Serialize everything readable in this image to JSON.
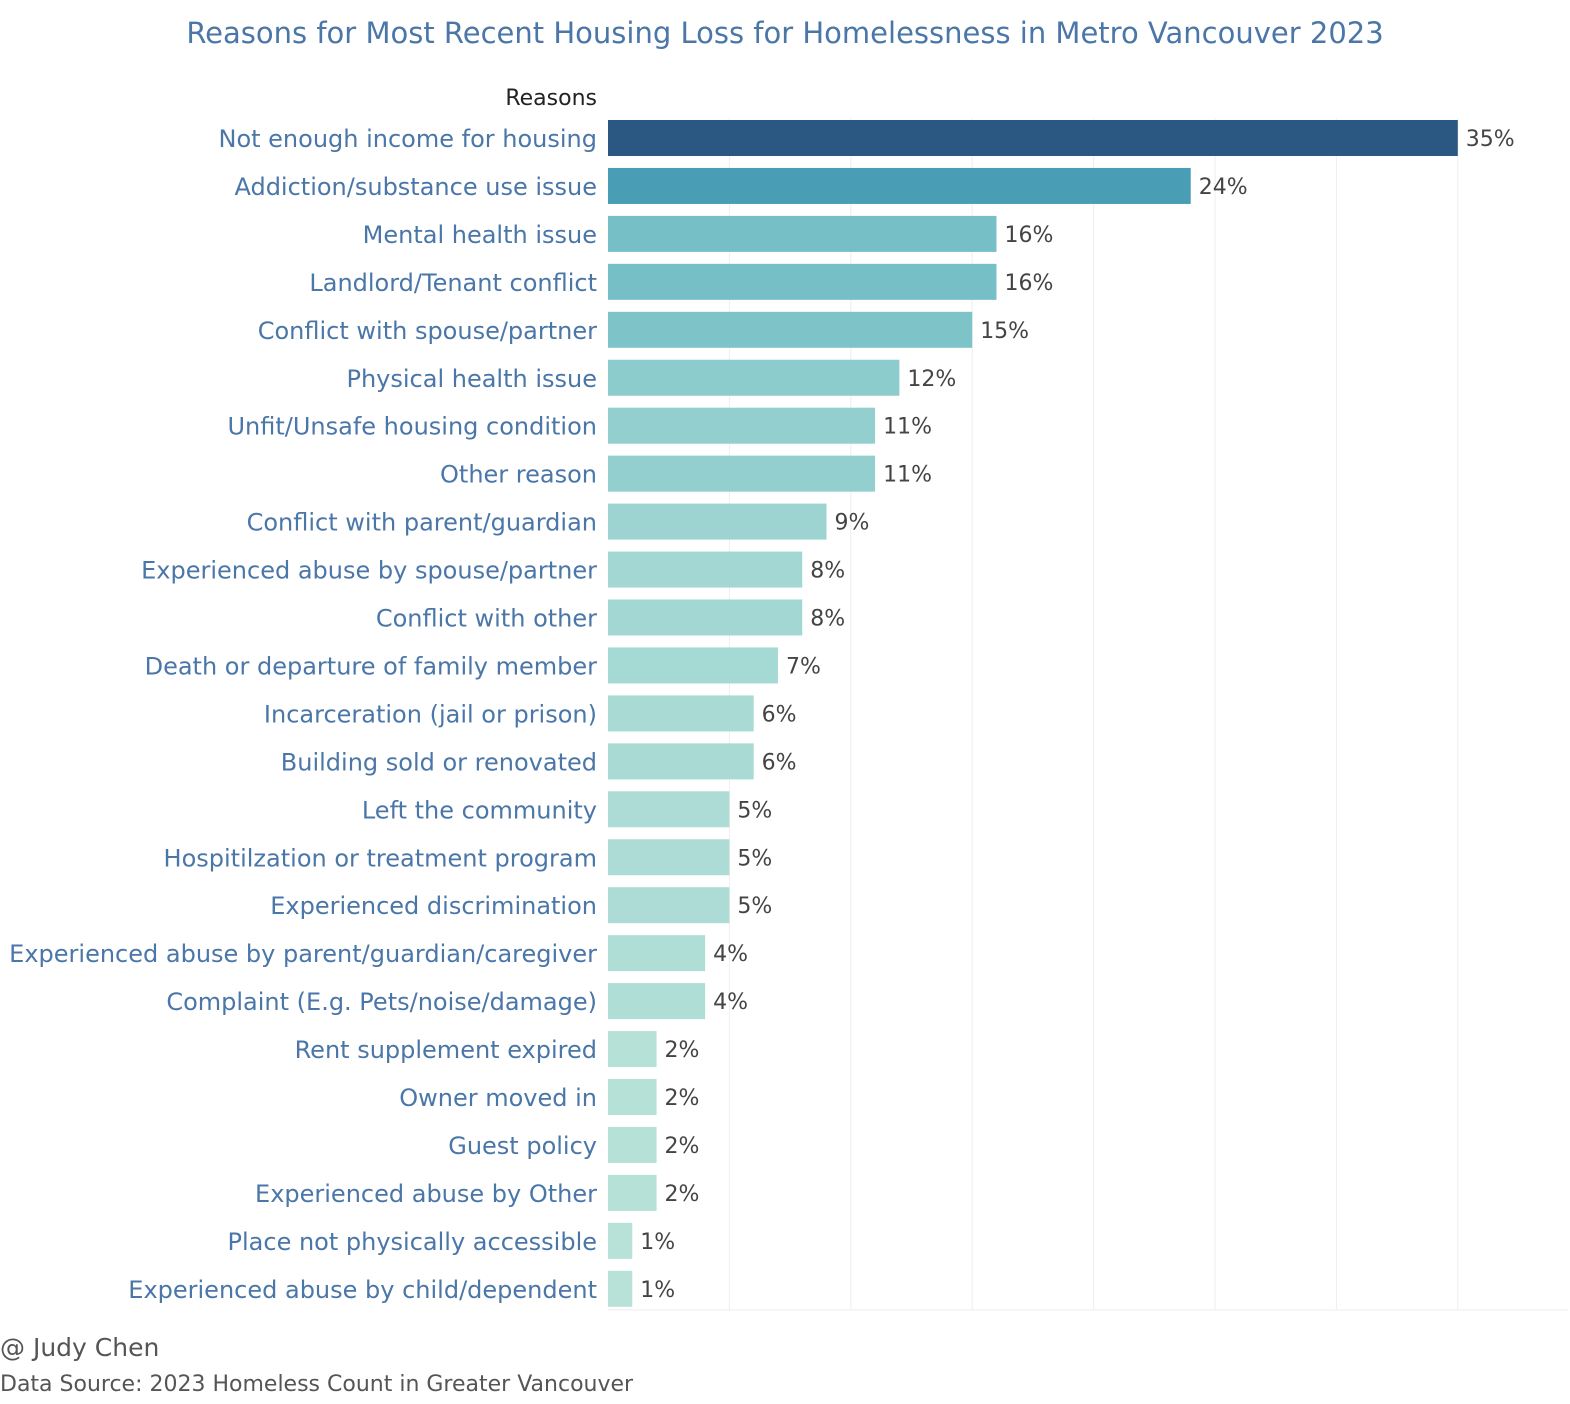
{
  "header": {
    "title": "Reasons for Most Recent Housing Loss for Homelessness in Metro Vancouver 2023"
  },
  "footer": {
    "author": "@ Judy Chen",
    "source": "Data Source: 2023 Homeless Count in Greater Vancouver"
  },
  "colors": {
    "title": "#4a76a8",
    "category_label": "#4a76a8",
    "value_label": "#444444",
    "gridline": "#eeeeee",
    "bar_dark": "#2b5883",
    "bar_light": "#b8e2d8"
  },
  "chart_data": {
    "type": "bar",
    "orientation": "horizontal",
    "title": "Reasons for Most Recent Housing Loss for Homelessness in Metro Vancouver 2023",
    "axis_header": "Reasons",
    "xlabel": "",
    "ylabel": "Reasons",
    "xlim": [
      0,
      40
    ],
    "grid": true,
    "legend": "none",
    "value_suffix": "%",
    "categories": [
      "Not enough income for housing",
      "Addiction/substance use issue",
      "Mental health issue",
      "Landlord/Tenant conflict",
      "Conflict with spouse/partner",
      "Physical health issue",
      "Unfit/Unsafe housing condition",
      "Other reason",
      "Conflict with parent/guardian",
      "Experienced abuse by spouse/partner",
      "Conflict with other",
      "Death or departure of family member",
      "Incarceration (jail or prison)",
      "Building sold or renovated",
      "Left the community",
      "Hospitilzation or treatment program",
      "Experienced discrimination",
      "Experienced abuse by parent/guardian/caregiver",
      "Complaint (E.g. Pets/noise/damage)",
      "Rent supplement expired",
      "Owner moved in",
      "Guest policy",
      "Experienced abuse by Other",
      "Place not physically accessible",
      "Experienced abuse by child/dependent"
    ],
    "values": [
      35,
      24,
      16,
      16,
      15,
      12,
      11,
      11,
      9,
      8,
      8,
      7,
      6,
      6,
      5,
      5,
      5,
      4,
      4,
      2,
      2,
      2,
      2,
      1,
      1
    ]
  }
}
